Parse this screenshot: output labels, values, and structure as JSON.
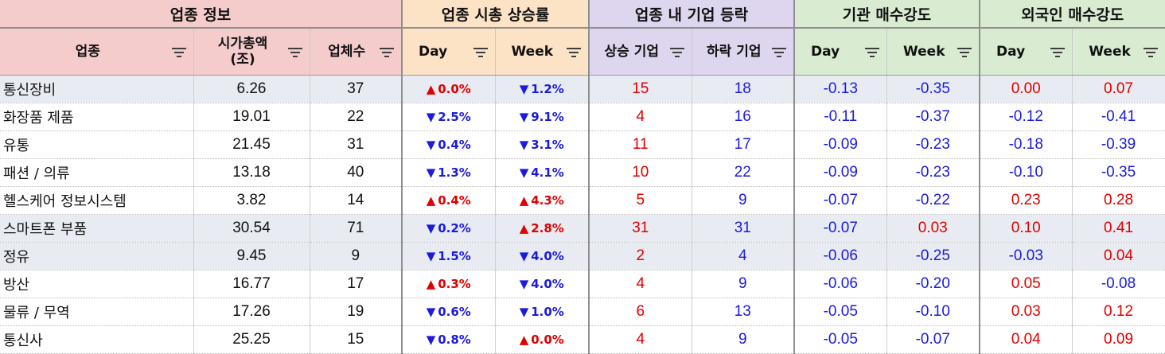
{
  "groups": {
    "info": "업종 정보",
    "rate": "업종 시총 상승률",
    "count": "업종 내 기업 등락",
    "institution": "기관 매수강도",
    "foreign": "외국인 매수강도"
  },
  "columns": {
    "sector": "업종",
    "market_cap_line1": "시가총액",
    "market_cap_line2": "(조)",
    "companies": "업체수",
    "rate_day": "Day",
    "rate_week": "Week",
    "rising": "상승 기업",
    "falling": "하락 기업",
    "inst_day": "Day",
    "inst_week": "Week",
    "for_day": "Day",
    "for_week": "Week"
  },
  "icons": {
    "filter": "filter-icon",
    "up": "triangle-up-icon",
    "down": "triangle-down-icon"
  },
  "colors": {
    "up": "#e00000",
    "down": "#1a1ae0",
    "info_bg": "#f4cccc",
    "rate_bg": "#fde3c6",
    "count_bg": "#ddd6ee",
    "strength_bg": "#d9ecd2",
    "highlight_row": "#e8ecf2"
  },
  "rows": [
    {
      "sector": "통신장비",
      "cap": "6.26",
      "companies": "37",
      "day": {
        "dir": "up",
        "v": "0.0%"
      },
      "week": {
        "dir": "down",
        "v": "1.2%"
      },
      "rising": "15",
      "falling": "18",
      "inst_day": "-0.13",
      "inst_week": "-0.35",
      "for_day": "0.00",
      "for_week": "0.07",
      "highlight": true
    },
    {
      "sector": "화장품 제품",
      "cap": "19.01",
      "companies": "22",
      "day": {
        "dir": "down",
        "v": "2.5%"
      },
      "week": {
        "dir": "down",
        "v": "9.1%"
      },
      "rising": "4",
      "falling": "16",
      "inst_day": "-0.11",
      "inst_week": "-0.37",
      "for_day": "-0.12",
      "for_week": "-0.41",
      "highlight": false
    },
    {
      "sector": "유통",
      "cap": "21.45",
      "companies": "31",
      "day": {
        "dir": "down",
        "v": "0.4%"
      },
      "week": {
        "dir": "down",
        "v": "3.1%"
      },
      "rising": "11",
      "falling": "17",
      "inst_day": "-0.09",
      "inst_week": "-0.23",
      "for_day": "-0.18",
      "for_week": "-0.39",
      "highlight": false
    },
    {
      "sector": "패션 / 의류",
      "cap": "13.18",
      "companies": "40",
      "day": {
        "dir": "down",
        "v": "1.3%"
      },
      "week": {
        "dir": "down",
        "v": "4.1%"
      },
      "rising": "10",
      "falling": "22",
      "inst_day": "-0.09",
      "inst_week": "-0.23",
      "for_day": "-0.10",
      "for_week": "-0.35",
      "highlight": false
    },
    {
      "sector": "헬스케어 정보시스템",
      "cap": "3.82",
      "companies": "14",
      "day": {
        "dir": "up",
        "v": "0.4%"
      },
      "week": {
        "dir": "up",
        "v": "4.3%"
      },
      "rising": "5",
      "falling": "9",
      "inst_day": "-0.07",
      "inst_week": "-0.22",
      "for_day": "0.23",
      "for_week": "0.28",
      "highlight": false
    },
    {
      "sector": "스마트폰 부품",
      "cap": "30.54",
      "companies": "71",
      "day": {
        "dir": "down",
        "v": "0.2%"
      },
      "week": {
        "dir": "up",
        "v": "2.8%"
      },
      "rising": "31",
      "falling": "31",
      "inst_day": "-0.07",
      "inst_week": "0.03",
      "for_day": "0.10",
      "for_week": "0.41",
      "highlight": true
    },
    {
      "sector": "정유",
      "cap": "9.45",
      "companies": "9",
      "day": {
        "dir": "down",
        "v": "1.5%"
      },
      "week": {
        "dir": "down",
        "v": "4.0%"
      },
      "rising": "2",
      "falling": "4",
      "inst_day": "-0.06",
      "inst_week": "-0.25",
      "for_day": "-0.03",
      "for_week": "0.04",
      "highlight": true
    },
    {
      "sector": "방산",
      "cap": "16.77",
      "companies": "17",
      "day": {
        "dir": "up",
        "v": "0.3%"
      },
      "week": {
        "dir": "down",
        "v": "4.0%"
      },
      "rising": "4",
      "falling": "9",
      "inst_day": "-0.06",
      "inst_week": "-0.20",
      "for_day": "0.05",
      "for_week": "-0.08",
      "highlight": false
    },
    {
      "sector": "물류 / 무역",
      "cap": "17.26",
      "companies": "19",
      "day": {
        "dir": "down",
        "v": "0.6%"
      },
      "week": {
        "dir": "down",
        "v": "1.0%"
      },
      "rising": "6",
      "falling": "13",
      "inst_day": "-0.05",
      "inst_week": "-0.10",
      "for_day": "0.03",
      "for_week": "0.12",
      "highlight": false
    },
    {
      "sector": "통신사",
      "cap": "25.25",
      "companies": "15",
      "day": {
        "dir": "down",
        "v": "0.8%"
      },
      "week": {
        "dir": "up",
        "v": "0.0%"
      },
      "rising": "4",
      "falling": "9",
      "inst_day": "-0.05",
      "inst_week": "-0.07",
      "for_day": "0.04",
      "for_week": "0.09",
      "highlight": false
    }
  ]
}
